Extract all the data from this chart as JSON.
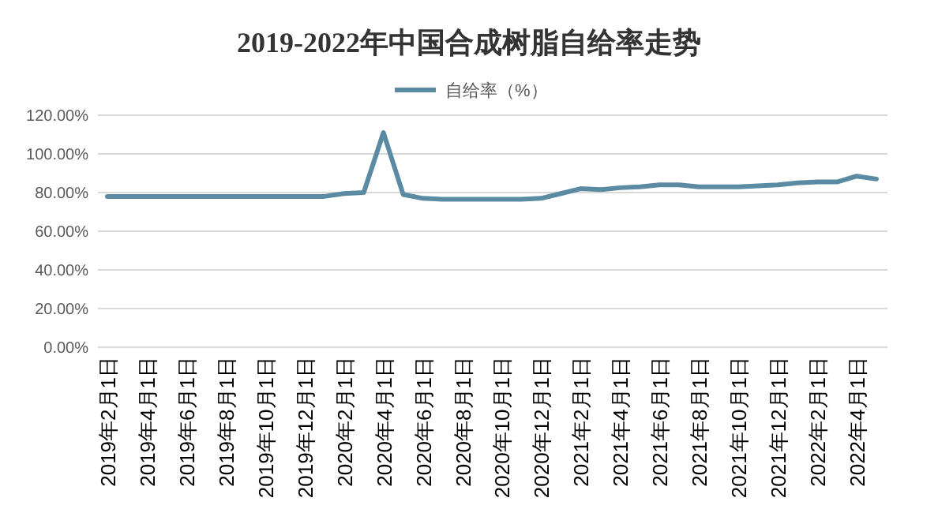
{
  "chart_data": {
    "type": "line",
    "title": "2019-2022年中国合成树脂自给率走势",
    "categories": [
      "2019年2月1日",
      null,
      "2019年4月1日",
      null,
      "2019年6月1日",
      null,
      "2019年8月1日",
      null,
      "2019年10月1日",
      null,
      "2019年12月1日",
      null,
      "2020年2月1日",
      null,
      "2020年4月1日",
      null,
      "2020年6月1日",
      null,
      "2020年8月1日",
      null,
      "2020年10月1日",
      null,
      "2020年12月1日",
      null,
      "2021年2月1日",
      null,
      "2021年4月1日",
      null,
      "2021年6月1日",
      null,
      "2021年8月1日",
      null,
      "2021年10月1日",
      null,
      "2021年12月1日",
      null,
      "2022年2月1日",
      null,
      "2022年4月1日",
      null
    ],
    "series": [
      {
        "name": "自给率（%）",
        "color": "#5b8ba3",
        "values": [
          78,
          78,
          78,
          78,
          78,
          78,
          78,
          78,
          78,
          78,
          78,
          78,
          79.5,
          80,
          111,
          79,
          77,
          76.5,
          76.5,
          76.5,
          76.5,
          76.5,
          77,
          79.5,
          82,
          81.5,
          82.5,
          83,
          84,
          84,
          83,
          83,
          83,
          83.5,
          84,
          85,
          85.5,
          85.5,
          88.5,
          87
        ]
      }
    ],
    "ylim": [
      0,
      120
    ],
    "yticks": [
      {
        "value": 0,
        "label": "0.00%"
      },
      {
        "value": 20,
        "label": "20.00%"
      },
      {
        "value": 40,
        "label": "40.00%"
      },
      {
        "value": 60,
        "label": "60.00%"
      },
      {
        "value": 80,
        "label": "80.00%"
      },
      {
        "value": 100,
        "label": "100.00%"
      },
      {
        "value": 120,
        "label": "120.00%"
      }
    ],
    "grid": "y",
    "legend": "top",
    "marker": "none",
    "line_style": "solid"
  }
}
